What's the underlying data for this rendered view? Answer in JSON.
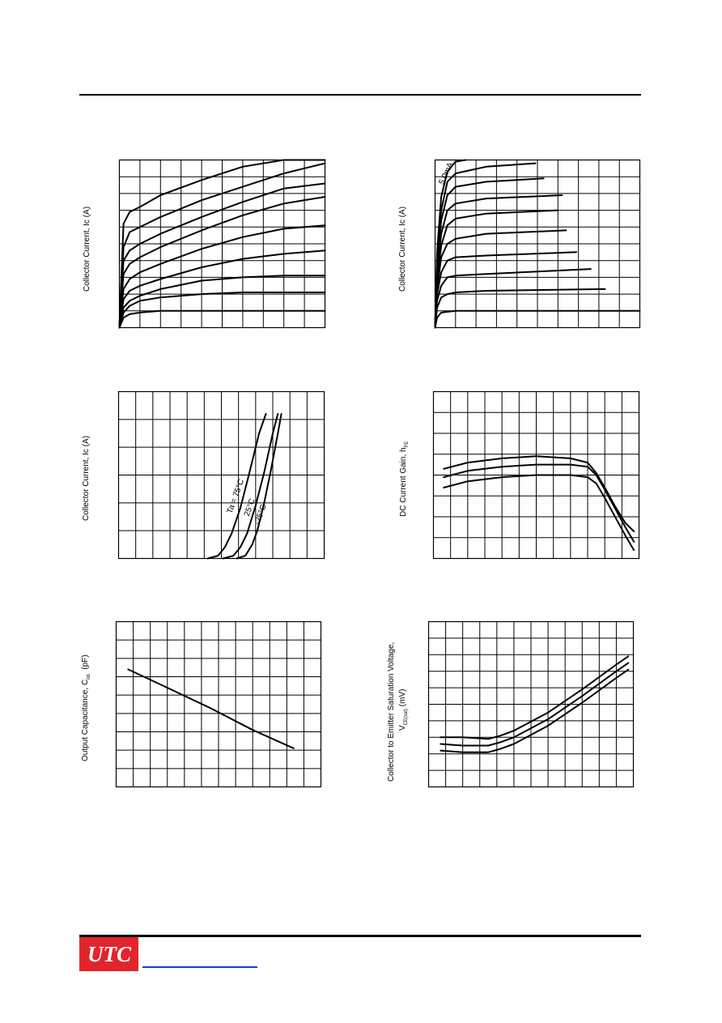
{
  "header": {},
  "charts": [
    {
      "id": "c1",
      "ylabel": "Collector Current, Ic (A)",
      "chart_data": {
        "type": "line",
        "title": "",
        "xlabel": "",
        "ylabel": "Collector Current, Ic (A)",
        "grid": true,
        "x_divisions": 10,
        "y_divisions": 10,
        "xlim": [
          0,
          10
        ],
        "ylim": [
          0,
          10
        ],
        "series": [
          {
            "x": [
              0,
              0.2,
              0.5,
              1,
              2,
              4,
              6,
              8,
              10
            ],
            "y": [
              0,
              6.2,
              6.9,
              7.2,
              7.9,
              8.8,
              9.6,
              10,
              10
            ]
          },
          {
            "x": [
              0,
              0.2,
              0.5,
              1,
              2,
              4,
              6,
              8,
              10
            ],
            "y": [
              0,
              4.8,
              5.7,
              6.0,
              6.6,
              7.6,
              8.4,
              9.2,
              9.8
            ]
          },
          {
            "x": [
              0,
              0.2,
              0.5,
              1,
              2,
              4,
              6,
              8,
              10
            ],
            "y": [
              0,
              4.0,
              4.6,
              5.0,
              5.6,
              6.6,
              7.5,
              8.3,
              8.6
            ]
          },
          {
            "x": [
              0,
              0.2,
              0.5,
              1,
              2,
              4,
              6,
              8,
              10
            ],
            "y": [
              0,
              3.2,
              3.8,
              4.2,
              4.8,
              5.8,
              6.7,
              7.4,
              7.8
            ]
          },
          {
            "x": [
              0,
              0.2,
              0.5,
              1,
              2,
              4,
              6,
              8,
              10
            ],
            "y": [
              0,
              2.3,
              2.9,
              3.3,
              3.8,
              4.7,
              5.4,
              5.9,
              6.1
            ]
          },
          {
            "x": [
              0,
              0.2,
              0.5,
              1,
              2,
              4,
              6,
              8,
              10
            ],
            "y": [
              0,
              1.7,
              2.2,
              2.5,
              2.9,
              3.6,
              4.1,
              4.4,
              4.6
            ]
          },
          {
            "x": [
              0,
              0.2,
              0.5,
              1,
              2,
              4,
              6,
              8,
              10
            ],
            "y": [
              0,
              1.2,
              1.6,
              1.9,
              2.3,
              2.8,
              3.0,
              3.1,
              3.1
            ]
          },
          {
            "x": [
              0,
              0.2,
              0.5,
              1,
              2,
              4,
              6,
              8,
              10
            ],
            "y": [
              0,
              0.9,
              1.3,
              1.6,
              1.8,
              2.0,
              2.1,
              2.1,
              2.1
            ]
          },
          {
            "x": [
              0,
              0.2,
              0.5,
              1,
              2,
              4,
              6,
              8,
              10
            ],
            "y": [
              0,
              0.6,
              0.8,
              0.9,
              1.0,
              1.0,
              1.0,
              1.0,
              1.0
            ]
          }
        ]
      }
    },
    {
      "id": "c2",
      "ylabel": "Collector Current, Ic (A)",
      "chart_data": {
        "type": "line",
        "title": "",
        "xlabel": "",
        "ylabel": "Collector Current, Ic (A)",
        "grid": true,
        "x_divisions": 10,
        "y_divisions": 10,
        "xlim": [
          0,
          10
        ],
        "ylim": [
          0,
          10
        ],
        "annotations": [
          {
            "text": "5.0mA",
            "x": 0.4,
            "y": 8.5,
            "rotate": -65
          }
        ],
        "series": [
          {
            "x": [
              0,
              0.1,
              0.3,
              0.6,
              1.0,
              1.5
            ],
            "y": [
              0,
              4.5,
              7.8,
              9.3,
              9.9,
              10
            ]
          },
          {
            "x": [
              0,
              0.1,
              0.3,
              0.6,
              1.0,
              2.5,
              4.9
            ],
            "y": [
              0,
              4.0,
              7.0,
              8.7,
              9.2,
              9.6,
              9.8
            ]
          },
          {
            "x": [
              0,
              0.1,
              0.3,
              0.6,
              1.0,
              2.5,
              5.3
            ],
            "y": [
              0,
              3.6,
              6.4,
              7.9,
              8.4,
              8.7,
              8.9
            ]
          },
          {
            "x": [
              0,
              0.1,
              0.3,
              0.6,
              1.0,
              2.5,
              6.2
            ],
            "y": [
              0,
              3.2,
              5.6,
              7.0,
              7.4,
              7.7,
              7.9
            ]
          },
          {
            "x": [
              0,
              0.1,
              0.3,
              0.6,
              1.0,
              2.5,
              6.0
            ],
            "y": [
              0,
              2.8,
              4.9,
              6.1,
              6.5,
              6.8,
              7.0
            ]
          },
          {
            "x": [
              0,
              0.1,
              0.3,
              0.6,
              1.0,
              2.5,
              6.4
            ],
            "y": [
              0,
              2.3,
              4.2,
              5.0,
              5.3,
              5.6,
              5.8
            ]
          },
          {
            "x": [
              0,
              0.1,
              0.3,
              0.6,
              1.0,
              2.5,
              6.9
            ],
            "y": [
              0,
              2.0,
              3.3,
              4.0,
              4.2,
              4.3,
              4.5
            ]
          },
          {
            "x": [
              0,
              0.1,
              0.3,
              0.6,
              1.0,
              2.5,
              7.6
            ],
            "y": [
              0,
              1.6,
              2.5,
              3.0,
              3.1,
              3.2,
              3.5
            ]
          },
          {
            "x": [
              0,
              0.1,
              0.3,
              0.6,
              1.0,
              2.5,
              8.3
            ],
            "y": [
              0,
              1.2,
              1.8,
              2.0,
              2.1,
              2.2,
              2.3
            ]
          },
          {
            "x": [
              0,
              0.1,
              0.3,
              1.0,
              2.5,
              10
            ],
            "y": [
              0,
              0.6,
              0.9,
              1.0,
              1.0,
              1.0
            ]
          }
        ]
      }
    },
    {
      "id": "c3",
      "ylabel": "Collector Current, Ic (A)",
      "chart_data": {
        "type": "line",
        "title": "",
        "xlabel": "",
        "ylabel": "Collector Current, Ic (A)",
        "grid": true,
        "x_divisions": 12,
        "y_divisions": 6,
        "xlim": [
          0,
          12
        ],
        "ylim": [
          0,
          6
        ],
        "annotations": [
          {
            "text": "Ta = 75°C",
            "x": 6.6,
            "y": 1.6,
            "rotate": -70
          },
          {
            "text": "25°C",
            "x": 7.6,
            "y": 1.5,
            "rotate": -70
          },
          {
            "text": "-25°C",
            "x": 8.2,
            "y": 1.2,
            "rotate": -70
          }
        ],
        "series": [
          {
            "name": "Ta = 75°C",
            "x": [
              5.2,
              5.8,
              6.2,
              6.6,
              7.1,
              7.6,
              8.2,
              8.6
            ],
            "y": [
              0,
              0.1,
              0.4,
              0.9,
              1.8,
              3.0,
              4.5,
              5.2
            ]
          },
          {
            "name": "25°C",
            "x": [
              6.1,
              6.7,
              7.1,
              7.5,
              8.0,
              8.5,
              9.0,
              9.3
            ],
            "y": [
              0,
              0.1,
              0.4,
              0.9,
              1.9,
              3.1,
              4.5,
              5.2
            ]
          },
          {
            "name": "-25°C",
            "x": [
              6.9,
              7.4,
              7.8,
              8.1,
              8.5,
              8.9,
              9.3,
              9.5
            ],
            "y": [
              0,
              0.1,
              0.5,
              1.0,
              2.0,
              3.2,
              4.5,
              5.2
            ]
          }
        ]
      }
    },
    {
      "id": "c4",
      "ylabel": "DC Current Gain, hFE",
      "chart_data": {
        "type": "line",
        "title": "",
        "xlabel": "",
        "ylabel": "DC Current Gain, hFE",
        "grid": true,
        "x_divisions": 12,
        "y_divisions": 8,
        "xlim": [
          0,
          12
        ],
        "ylim": [
          0,
          8
        ],
        "series": [
          {
            "x": [
              0.6,
              2.0,
              4.0,
              6.0,
              8.0,
              9.0,
              9.5,
              10.0,
              10.6,
              11.2,
              11.7
            ],
            "y": [
              4.3,
              4.6,
              4.8,
              4.9,
              4.8,
              4.6,
              4.1,
              3.4,
              2.5,
              1.7,
              1.3
            ]
          },
          {
            "x": [
              0.6,
              2.0,
              4.0,
              6.0,
              8.0,
              9.0,
              9.5,
              10.0,
              10.6,
              11.2,
              11.7
            ],
            "y": [
              3.9,
              4.2,
              4.4,
              4.5,
              4.5,
              4.4,
              4.0,
              3.3,
              2.4,
              1.5,
              0.8
            ]
          },
          {
            "x": [
              0.6,
              2.0,
              4.0,
              6.0,
              8.0,
              9.0,
              9.5,
              10.0,
              10.6,
              11.2,
              11.7
            ],
            "y": [
              3.4,
              3.7,
              3.9,
              4.0,
              4.0,
              3.9,
              3.6,
              2.9,
              2.0,
              1.1,
              0.4
            ]
          }
        ]
      }
    },
    {
      "id": "c5",
      "ylabel": "Output Capacitance, Cob (pF)",
      "chart_data": {
        "type": "line",
        "title": "",
        "xlabel": "",
        "ylabel": "Output Capacitance, Cob (pF)",
        "grid": true,
        "x_divisions": 12,
        "y_divisions": 9,
        "xlim": [
          0,
          12
        ],
        "ylim": [
          0,
          9
        ],
        "series": [
          {
            "x": [
              0.7,
              3.0,
              5.5,
              8.0,
              10.4
            ],
            "y": [
              6.4,
              5.4,
              4.3,
              3.1,
              2.1
            ]
          }
        ]
      }
    },
    {
      "id": "c6",
      "ylabel_line1": "Collector to Emitter Saturation Voltage,",
      "ylabel_line2": "VCE(sat) (mV)",
      "chart_data": {
        "type": "line",
        "title": "",
        "xlabel": "",
        "ylabel": "Collector to Emitter Saturation Voltage, VCE(sat) (mV)",
        "grid": true,
        "x_divisions": 12,
        "y_divisions": 10,
        "xlim": [
          0,
          12
        ],
        "ylim": [
          0,
          10
        ],
        "series": [
          {
            "x": [
              0.7,
              2.0,
              3.5,
              4.2,
              5.0,
              7.0,
              9.0,
              11.0,
              11.7
            ],
            "y": [
              3.0,
              3.0,
              2.9,
              3.1,
              3.4,
              4.5,
              5.9,
              7.4,
              7.9
            ]
          },
          {
            "x": [
              0.7,
              2.0,
              3.5,
              4.2,
              5.0,
              7.0,
              9.0,
              11.0,
              11.7
            ],
            "y": [
              2.6,
              2.5,
              2.5,
              2.7,
              3.0,
              4.1,
              5.5,
              7.0,
              7.5
            ]
          },
          {
            "x": [
              0.7,
              2.0,
              3.5,
              4.2,
              5.0,
              7.0,
              9.0,
              11.0,
              11.7
            ],
            "y": [
              2.2,
              2.1,
              2.1,
              2.3,
              2.6,
              3.7,
              5.1,
              6.6,
              7.1
            ]
          }
        ]
      }
    }
  ],
  "footer": {
    "logo_text": "UTC",
    "logo_color": "#e3242b",
    "link_color": "#1b3fd8"
  }
}
